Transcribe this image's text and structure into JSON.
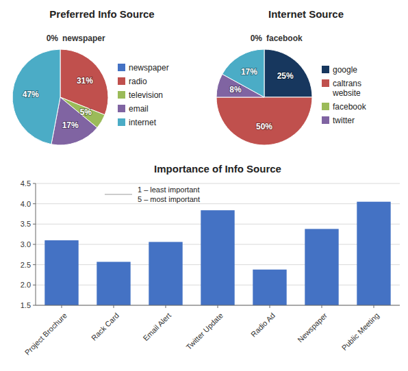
{
  "chart_data": [
    {
      "type": "pie",
      "title": "Preferred Info Source",
      "categories": [
        "newspaper",
        "radio",
        "television",
        "email",
        "internet"
      ],
      "values": [
        0,
        31,
        5,
        17,
        47
      ],
      "value_labels": [
        "0%",
        "31%",
        "5%",
        "17%",
        "47%"
      ],
      "colors": [
        "#4472C4",
        "#C0504D",
        "#9BBB59",
        "#8064A2",
        "#4BACC6"
      ],
      "data_labels": true,
      "legend": "right"
    },
    {
      "type": "pie",
      "title": "Internet Source",
      "categories": [
        "google",
        "caltrans\nwebsite",
        "facebook",
        "twitter",
        null
      ],
      "values": [
        25,
        50,
        0,
        8,
        17
      ],
      "value_labels": [
        "25%",
        "50%",
        "0%",
        "8%",
        "17%"
      ],
      "colors": [
        "#17375E",
        "#C0504D",
        "#9BBB59",
        "#8064A2",
        "#4BACC6"
      ],
      "data_labels": true,
      "legend": "right"
    },
    {
      "type": "bar",
      "title": "Importance of Info Source",
      "categories": [
        "Project Brochure",
        "Rack Card",
        "Email Alert",
        "Twitter Update",
        "Radio Ad",
        "Newspaper",
        "Public Meeting"
      ],
      "values": [
        3.1,
        2.57,
        3.06,
        3.84,
        2.38,
        3.38,
        4.05
      ],
      "color": "#4472C4",
      "ylim": [
        1.5,
        4.5
      ],
      "yticks": [
        1.5,
        {
          "value": 2.0,
          "label": "2.0"
        },
        2.5,
        {
          "value": 3.0,
          "label": "3.0"
        },
        3.5,
        {
          "value": 4.0,
          "label": "4.0"
        },
        4.5
      ],
      "grid": true,
      "annotations": [
        "1 – least important",
        "5 – most important"
      ]
    }
  ]
}
